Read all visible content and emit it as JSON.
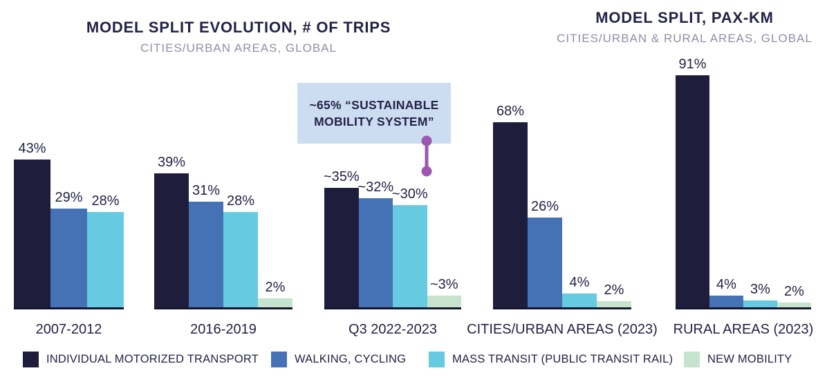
{
  "colors": {
    "individual_motorized_transport": "#1e1d3c",
    "walking_cycling": "#4472b4",
    "mass_transit": "#66cbe0",
    "new_mobility": "#c6e3ce",
    "annotation_bg": "#cdddf1",
    "connector_purple": "#9d57b0",
    "title_navy": "#232247",
    "subtitle_gray": "#8e8ea8"
  },
  "chart_data": [
    {
      "type": "bar",
      "title": "MODEL SPLIT EVOLUTION, # OF TRIPS",
      "subtitle": "CITIES/URBAN AREAS, GLOBAL",
      "unit": "%",
      "ylim": [
        0,
        100
      ],
      "grid": false,
      "categories": [
        "2007-2012",
        "2016-2019",
        "Q3 2022-2023"
      ],
      "series": [
        {
          "key": "individual-motorized-transport",
          "name": "INDIVIDUAL MOTORIZED TRANSPORT",
          "color": "#1e1d3c",
          "values": [
            43,
            39,
            35
          ],
          "display": [
            "43%",
            "39%",
            "~35%"
          ]
        },
        {
          "key": "walking-cycling",
          "name": "WALKING, CYCLING",
          "color": "#4472b4",
          "values": [
            29,
            31,
            32
          ],
          "display": [
            "29%",
            "31%",
            "~32%"
          ]
        },
        {
          "key": "mass-transit",
          "name": "MASS TRANSIT (PUBLIC TRANSIT RAIL)",
          "color": "#66cbe0",
          "values": [
            28,
            28,
            30
          ],
          "display": [
            "28%",
            "28%",
            "~30%"
          ]
        },
        {
          "key": "new-mobility",
          "name": "NEW MOBILITY",
          "color": "#c6e3ce",
          "values": [
            null,
            2,
            3
          ],
          "display": [
            null,
            "2%",
            "~3%"
          ]
        }
      ],
      "annotation": {
        "text": "~65% “SUSTAINABLE MOBILITY SYSTEM”",
        "line1": "~65% “SUSTAINABLE",
        "line2": "MOBILITY SYSTEM”",
        "applies_to_category": "Q3 2022-2023"
      }
    },
    {
      "type": "bar",
      "title": "MODEL SPLIT, PAX-KM",
      "subtitle": "CITIES/URBAN & RURAL AREAS, GLOBAL",
      "unit": "%",
      "ylim": [
        0,
        100
      ],
      "grid": false,
      "categories": [
        "CITIES/URBAN AREAS (2023)",
        "RURAL AREAS (2023)"
      ],
      "series": [
        {
          "key": "individual-motorized-transport",
          "name": "INDIVIDUAL MOTORIZED TRANSPORT",
          "color": "#1e1d3c",
          "values": [
            68,
            91
          ],
          "display": [
            "68%",
            "91%"
          ]
        },
        {
          "key": "walking-cycling",
          "name": "WALKING, CYCLING",
          "color": "#4472b4",
          "values": [
            26,
            4
          ],
          "display": [
            "26%",
            "4%"
          ]
        },
        {
          "key": "mass-transit",
          "name": "MASS TRANSIT (PUBLIC TRANSIT RAIL)",
          "color": "#66cbe0",
          "values": [
            4,
            3
          ],
          "display": [
            "4%",
            "3%"
          ]
        },
        {
          "key": "new-mobility",
          "name": "NEW MOBILITY",
          "color": "#c6e3ce",
          "values": [
            2,
            2
          ],
          "display": [
            "2%",
            "2%"
          ]
        }
      ]
    }
  ],
  "legend": [
    {
      "key": "individual-motorized-transport",
      "label": "INDIVIDUAL MOTORIZED TRANSPORT",
      "color": "#1e1d3c"
    },
    {
      "key": "walking-cycling",
      "label": "WALKING, CYCLING",
      "color": "#4472b4"
    },
    {
      "key": "mass-transit",
      "label": "MASS TRANSIT (PUBLIC TRANSIT RAIL)",
      "color": "#66cbe0"
    },
    {
      "key": "new-mobility",
      "label": "NEW MOBILITY",
      "color": "#c6e3ce"
    }
  ]
}
